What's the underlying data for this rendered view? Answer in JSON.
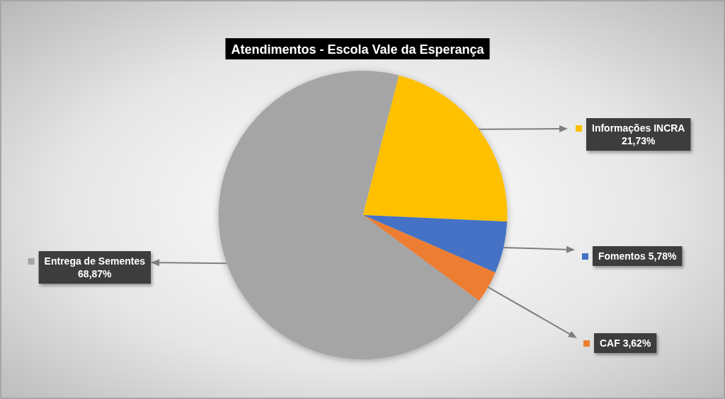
{
  "chart_data": {
    "type": "pie",
    "title": "Atendimentos - Escola Vale da Esperança",
    "categories": [
      "Informações INCRA",
      "Fomentos",
      "CAF",
      "Entrega de Sementes"
    ],
    "values": [
      21.73,
      5.78,
      3.62,
      68.87
    ],
    "colors": [
      "#ffc000",
      "#4472c4",
      "#ed7d31",
      "#a5a5a5"
    ],
    "value_labels": [
      "21,73%",
      "5,78%",
      "3,62%",
      "68,87%"
    ],
    "legend": "right"
  }
}
